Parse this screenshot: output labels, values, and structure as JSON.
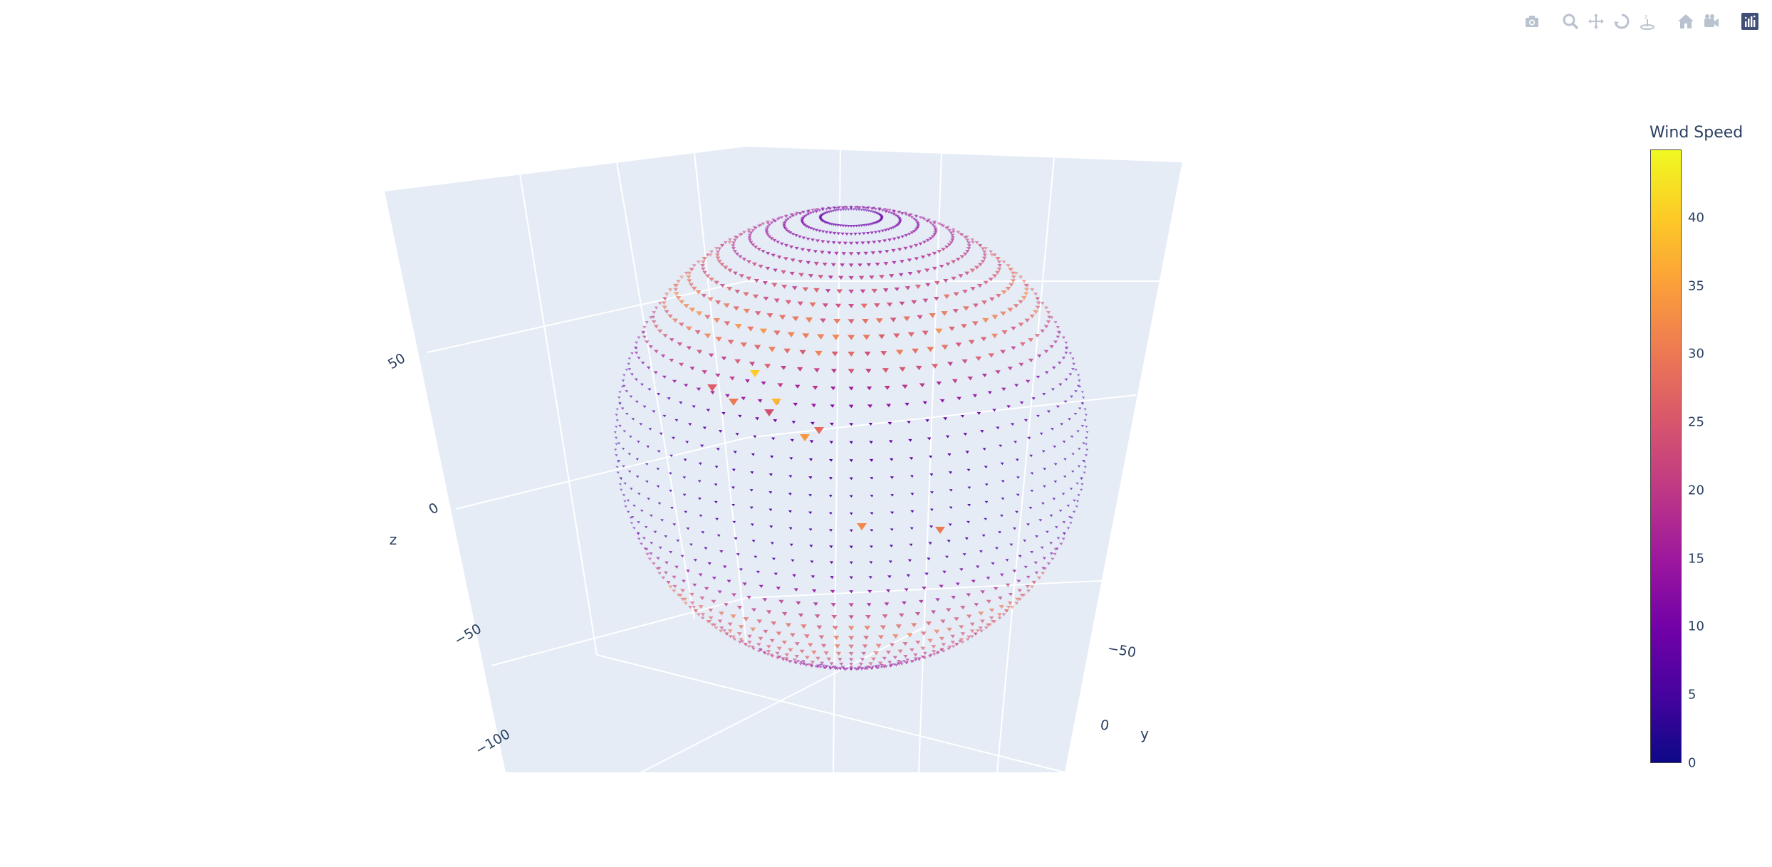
{
  "modebar": {
    "buttons": [
      {
        "name": "camera-icon"
      },
      {
        "name": "zoom-icon"
      },
      {
        "name": "pan-icon"
      },
      {
        "name": "orbit-rotation-icon"
      },
      {
        "name": "turntable-rotation-icon"
      },
      {
        "name": "reset-camera-home-icon"
      },
      {
        "name": "camera-last-save-icon"
      },
      {
        "name": "plotly-logo-icon"
      }
    ]
  },
  "chart_data": {
    "type": "cone",
    "description_shape": "spherical shell of wind vectors",
    "scene": {
      "zaxis": {
        "title": "z",
        "ticks": [
          "−100",
          "−50",
          "0",
          "50"
        ]
      },
      "yaxis": {
        "title": "y",
        "ticks": [
          "−50",
          "0"
        ]
      },
      "xaxis": {
        "title": "",
        "ticks": []
      },
      "background": "#e5ecf6",
      "grid": true
    },
    "colorbar": {
      "title": "Wind Speed",
      "colorscale": "Plasma",
      "colors": [
        "#0d0887",
        "#46039f",
        "#7201a8",
        "#9c179e",
        "#bd3786",
        "#d8576b",
        "#ed7953",
        "#fb9f3a",
        "#fdca26",
        "#f0f921"
      ],
      "range": [
        0,
        45
      ],
      "ticks": [
        0,
        5,
        10,
        15,
        20,
        25,
        30,
        35,
        40
      ]
    },
    "speed_profile_by_latitude": {
      "latitude_deg": [
        -90,
        -60,
        -40,
        -20,
        0,
        20,
        40,
        60,
        90
      ],
      "speed": [
        5,
        22,
        28,
        8,
        5,
        9,
        30,
        20,
        6
      ]
    }
  }
}
